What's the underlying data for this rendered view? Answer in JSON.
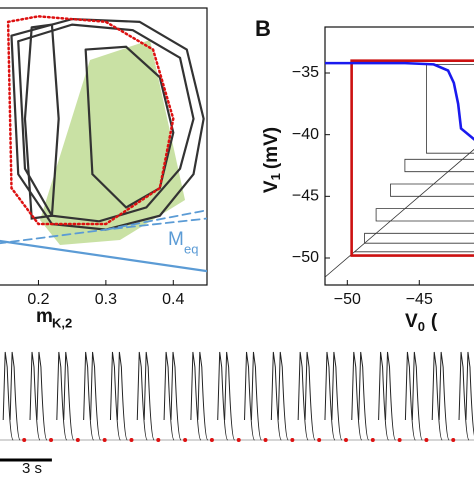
{
  "chart_data": [
    {
      "type": "line",
      "x_label": "m",
      "x_label_sub": "K,2",
      "annotation": "M",
      "annotation_sub": "eq",
      "xlim": [
        0.14,
        0.45
      ],
      "ylim": [
        0,
        1
      ],
      "xticks": [
        0.2,
        0.3,
        0.4
      ],
      "series": [
        {
          "color": "#333333",
          "style": "solid",
          "x": [
            0.16,
            0.25,
            0.35,
            0.42,
            0.445,
            0.43,
            0.38,
            0.3,
            0.22,
            0.17,
            0.16
          ],
          "y": [
            0.9,
            0.96,
            0.95,
            0.85,
            0.6,
            0.4,
            0.25,
            0.2,
            0.22,
            0.4,
            0.9
          ]
        },
        {
          "color": "#333333",
          "style": "solid",
          "x": [
            0.17,
            0.25,
            0.34,
            0.41,
            0.43,
            0.41,
            0.36,
            0.29,
            0.22,
            0.18,
            0.17
          ],
          "y": [
            0.88,
            0.94,
            0.92,
            0.82,
            0.6,
            0.42,
            0.28,
            0.23,
            0.25,
            0.42,
            0.88
          ]
        },
        {
          "color": "#333333",
          "style": "solid",
          "x": [
            0.27,
            0.33,
            0.38,
            0.4,
            0.38,
            0.33,
            0.28,
            0.27
          ],
          "y": [
            0.85,
            0.86,
            0.75,
            0.55,
            0.35,
            0.28,
            0.4,
            0.85
          ]
        },
        {
          "color": "#333333",
          "style": "solid",
          "x": [
            0.19,
            0.22,
            0.23,
            0.22,
            0.19,
            0.18,
            0.19
          ],
          "y": [
            0.93,
            0.94,
            0.6,
            0.25,
            0.24,
            0.6,
            0.93
          ]
        },
        {
          "color": "#dd1111",
          "style": "dotted",
          "x": [
            0.155,
            0.2,
            0.3,
            0.37,
            0.4,
            0.38,
            0.3,
            0.2,
            0.16,
            0.155
          ],
          "y": [
            0.95,
            0.97,
            0.95,
            0.85,
            0.6,
            0.35,
            0.22,
            0.22,
            0.35,
            0.95
          ]
        },
        {
          "color": "#5b9bd5",
          "style": "dashed",
          "x": [
            0.3,
            0.45
          ],
          "y": [
            0.2,
            0.27
          ]
        },
        {
          "color": "#5b9bd5",
          "style": "dashed",
          "x": [
            0.14,
            0.3,
            0.45
          ],
          "y": [
            0.15,
            0.2,
            0.24
          ]
        },
        {
          "color": "#5b9bd5",
          "style": "solid",
          "x": [
            0.14,
            0.45
          ],
          "y": [
            0.16,
            0.05
          ]
        }
      ]
    },
    {
      "type": "line",
      "panel": "B",
      "x_label": "V",
      "x_label_sub": "0",
      "x_label_rest": "(",
      "y_label": "V",
      "y_label_sub": "1",
      "y_label_rest": "(mV)",
      "xlim": [
        -51.55,
        -41.06
      ],
      "ylim": [
        -52.19,
        -31.27
      ],
      "xticks": [
        {
          "value": -50,
          "label": "−50"
        },
        {
          "value": -45,
          "label": "−45"
        }
      ],
      "yticks": [
        {
          "value": -35,
          "label": "−35"
        },
        {
          "value": -40,
          "label": "−40"
        },
        {
          "value": -45,
          "label": "−45"
        },
        {
          "value": -50,
          "label": "−50"
        }
      ],
      "series": [
        {
          "color": "#333333",
          "style": "thin",
          "x": [
            -51.55,
            -41.06
          ],
          "y": [
            -51.55,
            -41.06
          ]
        },
        {
          "color": "#333333",
          "style": "thin",
          "x": [
            -49.5,
            -41.06,
            -41.06,
            -48.8,
            -48.8,
            -41.06,
            -41.06,
            -48,
            -48,
            -41.06,
            -41.06,
            -47,
            -47,
            -41.06,
            -41.06,
            -46,
            -46,
            -41.06,
            -41.06,
            -44.5,
            -44.5,
            -41.06
          ],
          "y": [
            -49.5,
            -49.5,
            -48.8,
            -48.8,
            -48,
            -48,
            -47,
            -47,
            -46,
            -46,
            -45,
            -45,
            -44,
            -44,
            -43,
            -43,
            -42,
            -42,
            -41.5,
            -41.5,
            -34.3,
            -34.3
          ]
        },
        {
          "color": "#cc1111",
          "style": "thick",
          "x": [
            -41.06,
            -49.7,
            -49.7,
            -41.06
          ],
          "y": [
            -34.0,
            -34.0,
            -49.8,
            -49.8
          ]
        },
        {
          "color": "#1a1aee",
          "style": "thick",
          "x": [
            -51.5,
            -46,
            -44,
            -43,
            -42.6,
            -42.3,
            -42.1,
            -41.06
          ],
          "y": [
            -34.2,
            -34.2,
            -34.3,
            -34.8,
            -35.8,
            -37.5,
            -39.5,
            -40.5
          ]
        }
      ]
    },
    {
      "type": "trace",
      "xlim": [
        0,
        27.4
      ],
      "scale_bar": 3,
      "scale_bar_label": "3 s",
      "spike_times": [
        0.3,
        0.7,
        1.85,
        2.25,
        3.4,
        3.8,
        4.95,
        5.35,
        6.5,
        6.9,
        8.05,
        8.45,
        9.6,
        10.0,
        11.15,
        11.55,
        12.7,
        13.1,
        14.25,
        14.65,
        15.8,
        16.2,
        17.35,
        17.75,
        18.9,
        19.3,
        20.45,
        20.85,
        22.0,
        22.4,
        23.55,
        23.95,
        25.1,
        25.5,
        26.65,
        27.05
      ],
      "trough_times": [
        1.4,
        2.95,
        4.5,
        6.05,
        7.6,
        9.15,
        10.7,
        12.25,
        13.8,
        15.35,
        16.9,
        18.45,
        20.0,
        21.55,
        23.1,
        24.65,
        26.2
      ]
    }
  ]
}
